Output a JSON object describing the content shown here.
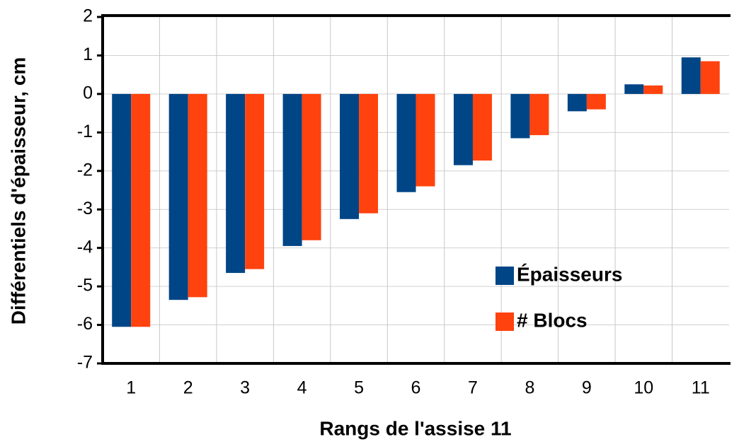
{
  "chart_data": {
    "type": "bar",
    "xlabel": "Rangs de l'assise 11",
    "ylabel": "Différentiels d'épaisseur, cm",
    "categories": [
      "1",
      "2",
      "3",
      "4",
      "5",
      "6",
      "7",
      "8",
      "9",
      "10",
      "11"
    ],
    "series": [
      {
        "name": "Épaisseurs",
        "color": "#004586",
        "values": [
          -6.05,
          -5.35,
          -4.65,
          -3.95,
          -3.25,
          -2.55,
          -1.85,
          -1.15,
          -0.45,
          0.25,
          0.95
        ]
      },
      {
        "name": "# Blocs",
        "color": "#ff420e",
        "values": [
          -6.05,
          -5.28,
          -4.55,
          -3.8,
          -3.1,
          -2.4,
          -1.73,
          -1.07,
          -0.4,
          0.22,
          0.85
        ]
      }
    ],
    "ylim": [
      -7,
      2
    ],
    "yticks": [
      2,
      1,
      0,
      -1,
      -2,
      -3,
      -4,
      -5,
      -6,
      -7
    ],
    "grid": true,
    "legend": "lower right"
  }
}
